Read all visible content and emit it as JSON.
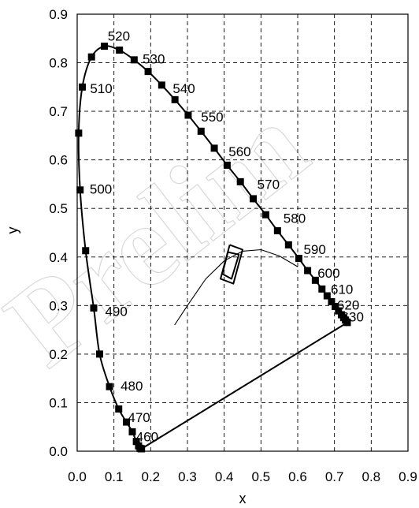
{
  "chart_data": {
    "type": "line",
    "title": "",
    "xlabel": "x",
    "ylabel": "y",
    "xlim": [
      0.0,
      0.9
    ],
    "ylim": [
      0.0,
      0.9
    ],
    "xticks": [
      "0.0",
      "0.1",
      "0.2",
      "0.3",
      "0.4",
      "0.5",
      "0.6",
      "0.7",
      "0.8",
      "0.9"
    ],
    "yticks": [
      "0.0",
      "0.1",
      "0.2",
      "0.3",
      "0.4",
      "0.5",
      "0.6",
      "0.7",
      "0.8",
      "0.9"
    ],
    "grid": true,
    "series": [
      {
        "marker": "square",
        "color": "#000000",
        "x": [
          0.175,
          0.174,
          0.171,
          0.167,
          0.161,
          0.15,
          0.134,
          0.113,
          0.088,
          0.061,
          0.045,
          0.023,
          0.008,
          0.004,
          0.014,
          0.039,
          0.074,
          0.115,
          0.155,
          0.193,
          0.23,
          0.266,
          0.302,
          0.337,
          0.373,
          0.408,
          0.444,
          0.479,
          0.513,
          0.545,
          0.575,
          0.603,
          0.627,
          0.648,
          0.666,
          0.68,
          0.692,
          0.702,
          0.711,
          0.719,
          0.725,
          0.73,
          0.734,
          0.735
        ],
        "y": [
          0.005,
          0.005,
          0.006,
          0.011,
          0.02,
          0.04,
          0.06,
          0.087,
          0.133,
          0.2,
          0.295,
          0.413,
          0.538,
          0.655,
          0.75,
          0.812,
          0.834,
          0.826,
          0.806,
          0.782,
          0.754,
          0.724,
          0.692,
          0.659,
          0.624,
          0.589,
          0.555,
          0.52,
          0.487,
          0.454,
          0.425,
          0.397,
          0.372,
          0.352,
          0.334,
          0.32,
          0.308,
          0.298,
          0.289,
          0.281,
          0.275,
          0.27,
          0.266,
          0.265
        ]
      },
      {
        "marker": "none",
        "color": "#000000",
        "x": [
          0.175,
          0.735
        ],
        "y": [
          0.005,
          0.265
        ]
      },
      {
        "marker": "none",
        "color": "#000000",
        "x": [
          0.265,
          0.3,
          0.35,
          0.4,
          0.45,
          0.5,
          0.55,
          0.6
        ],
        "y": [
          0.26,
          0.3,
          0.355,
          0.392,
          0.412,
          0.415,
          0.402,
          0.38
        ]
      },
      {
        "marker": "none",
        "color": "#000000",
        "x": [
          0.415,
          0.45,
          0.425,
          0.39,
          0.415
        ],
        "y": [
          0.425,
          0.415,
          0.345,
          0.355,
          0.425
        ]
      },
      {
        "marker": "none",
        "color": "#000000",
        "x": [
          0.41,
          0.44,
          0.42,
          0.395,
          0.41
        ],
        "y": [
          0.41,
          0.405,
          0.355,
          0.365,
          0.41
        ]
      }
    ],
    "annotations": [
      {
        "text": "460",
        "x": 0.16,
        "y": 0.03
      },
      {
        "text": "470",
        "x": 0.138,
        "y": 0.07
      },
      {
        "text": "480",
        "x": 0.118,
        "y": 0.135
      },
      {
        "text": "490",
        "x": 0.076,
        "y": 0.288
      },
      {
        "text": "500",
        "x": 0.034,
        "y": 0.54
      },
      {
        "text": "510",
        "x": 0.035,
        "y": 0.747
      },
      {
        "text": "520",
        "x": 0.083,
        "y": 0.855
      },
      {
        "text": "530",
        "x": 0.178,
        "y": 0.808
      },
      {
        "text": "540",
        "x": 0.26,
        "y": 0.747
      },
      {
        "text": "550",
        "x": 0.337,
        "y": 0.689
      },
      {
        "text": "560",
        "x": 0.412,
        "y": 0.617
      },
      {
        "text": "570",
        "x": 0.49,
        "y": 0.55
      },
      {
        "text": "580",
        "x": 0.561,
        "y": 0.48
      },
      {
        "text": "590",
        "x": 0.616,
        "y": 0.416
      },
      {
        "text": "600",
        "x": 0.654,
        "y": 0.367
      },
      {
        "text": "610",
        "x": 0.69,
        "y": 0.334
      },
      {
        "text": "620",
        "x": 0.707,
        "y": 0.301
      },
      {
        "text": "630",
        "x": 0.719,
        "y": 0.277
      }
    ]
  },
  "watermark": {
    "text": "Prelim",
    "color": "#b8b8b8"
  }
}
